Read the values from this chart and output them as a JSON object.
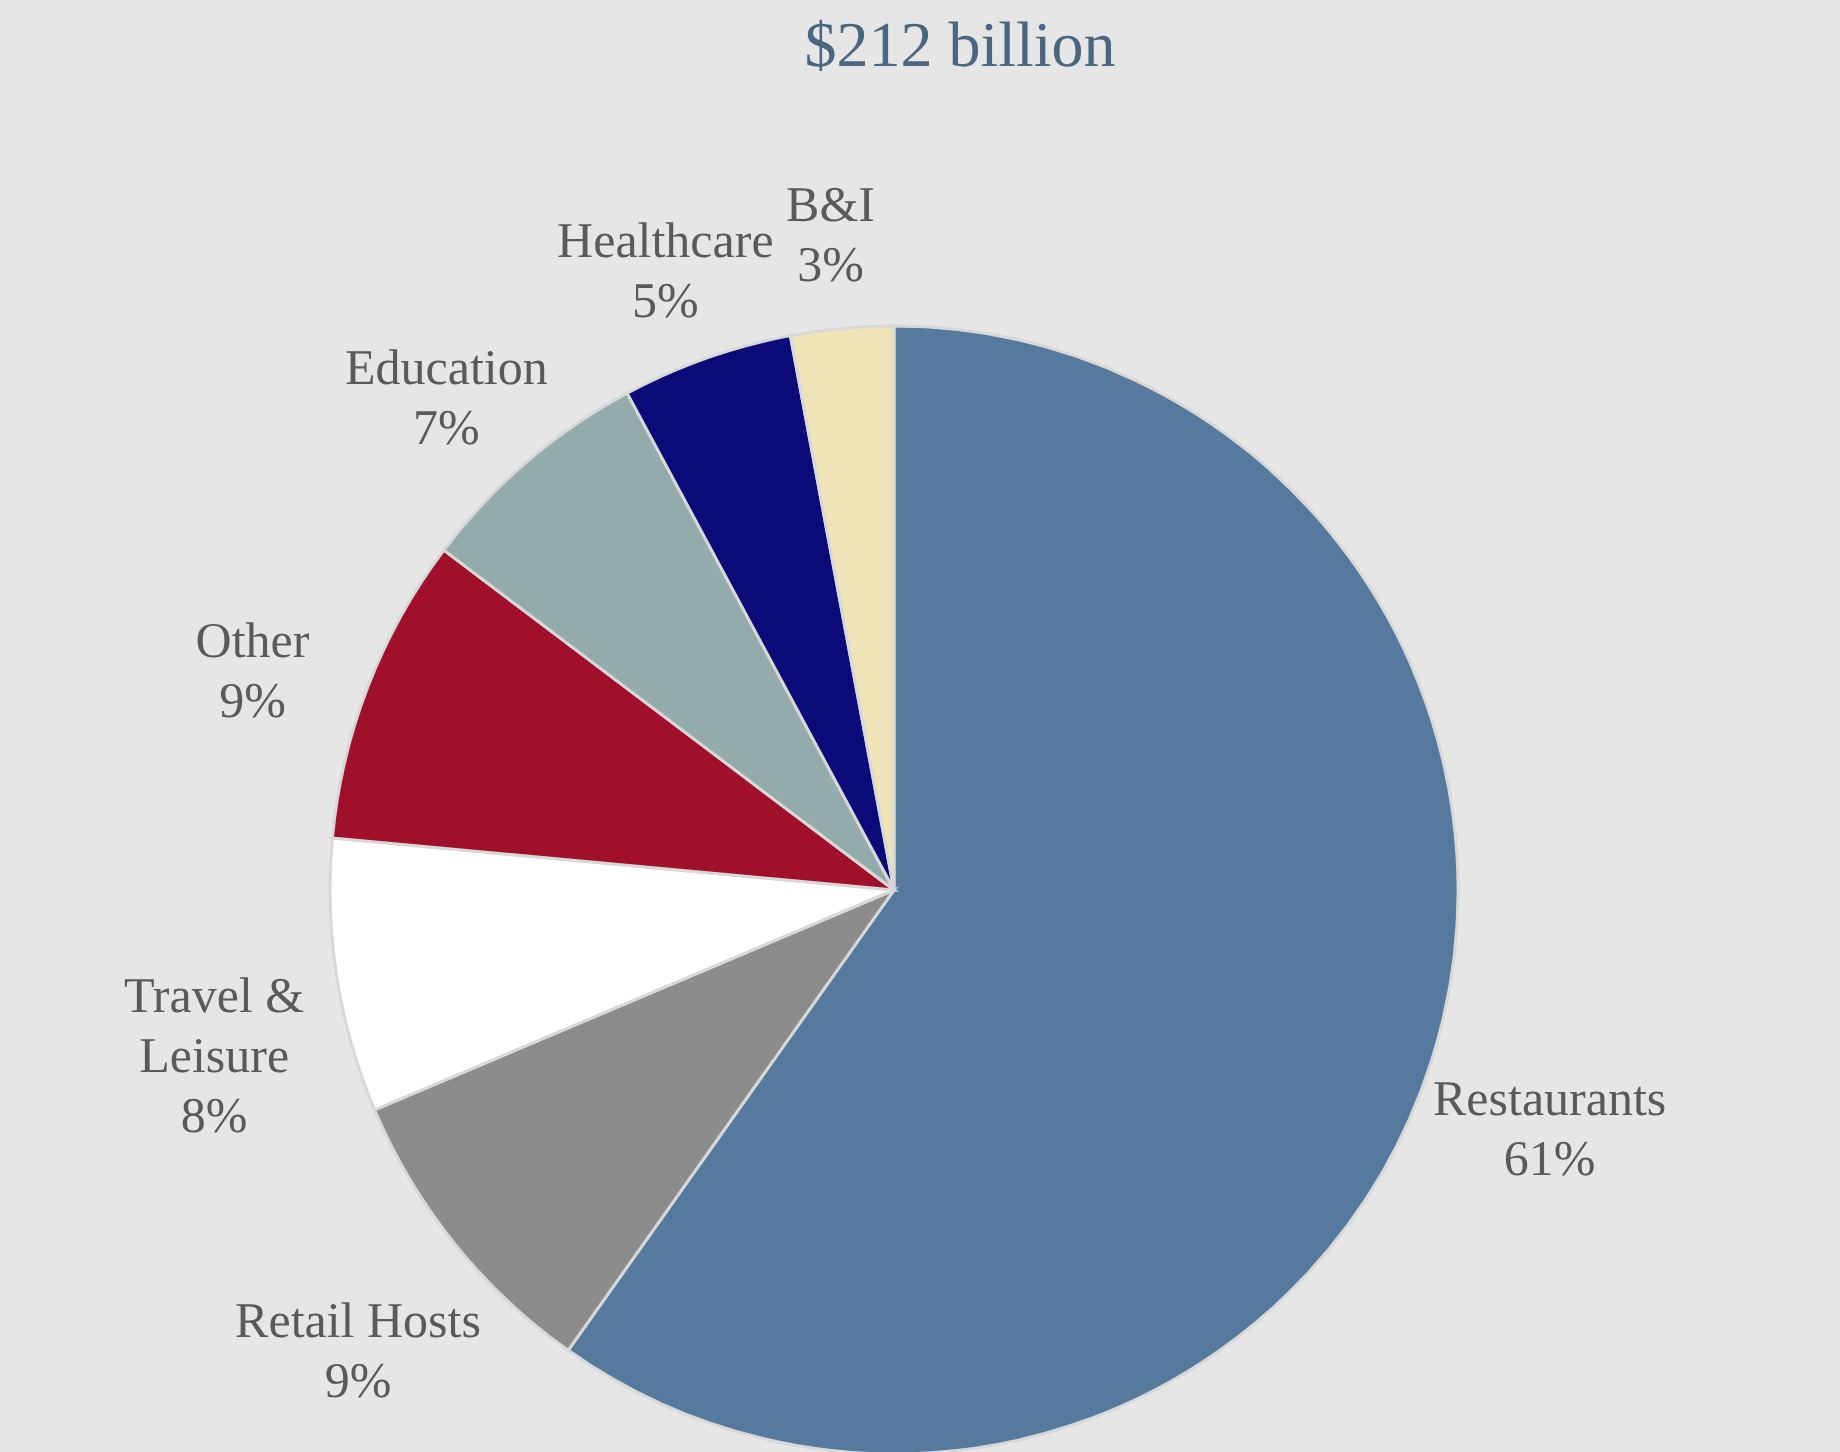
{
  "chart_data": {
    "type": "pie",
    "title": "$212 billion",
    "categories": [
      "Restaurants",
      "Retail Hosts",
      "Travel & Leisure",
      "Other",
      "Education",
      "Healthcare",
      "B&I"
    ],
    "values": [
      61,
      9,
      8,
      9,
      7,
      5,
      3
    ],
    "value_labels": [
      "61%",
      "9%",
      "8%",
      "9%",
      "7%",
      "5%",
      "3%"
    ],
    "colors": [
      "#557a9e",
      "#8c8c8c",
      "#ffffff",
      "#a0102a",
      "#93acab",
      "#0a0a78",
      "#efe3b8"
    ]
  }
}
